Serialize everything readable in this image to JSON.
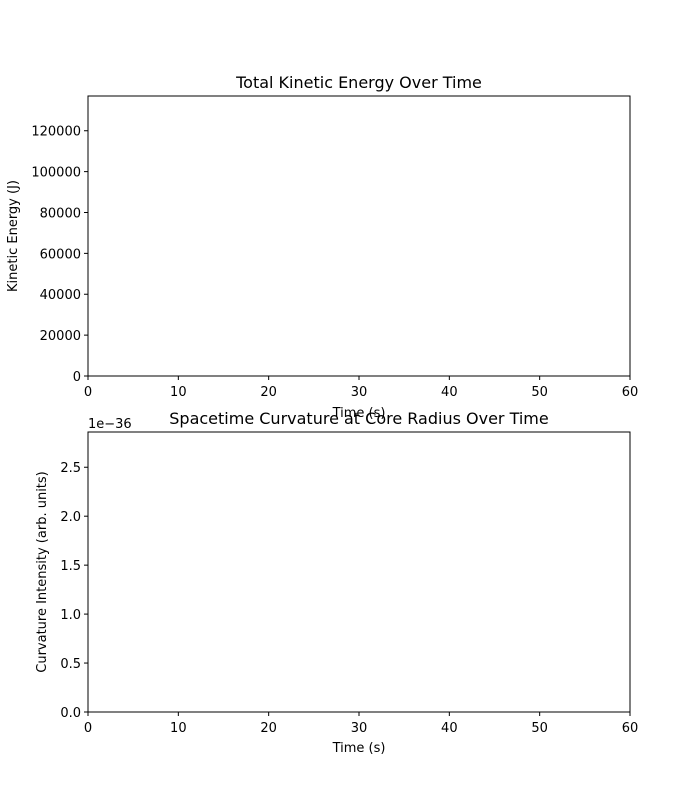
{
  "chart_data": [
    {
      "type": "line",
      "title": "Total Kinetic Energy Over Time",
      "xlabel": "Time (s)",
      "ylabel": "Kinetic Energy (J)",
      "xlim": [
        0,
        60
      ],
      "ylim": [
        0,
        137000
      ],
      "xticks": [
        0,
        10,
        20,
        30,
        40,
        50,
        60
      ],
      "xtick_labels": [
        "0",
        "10",
        "20",
        "30",
        "40",
        "50",
        "60"
      ],
      "yticks": [
        0,
        20000,
        40000,
        60000,
        80000,
        100000,
        120000
      ],
      "ytick_labels": [
        "0",
        "20000",
        "40000",
        "60000",
        "80000",
        "100000",
        "120000"
      ],
      "offset_label": "",
      "grid": false,
      "series": []
    },
    {
      "type": "line",
      "title": "Spacetime Curvature at Core Radius Over Time",
      "xlabel": "Time (s)",
      "ylabel": "Curvature Intensity (arb. units)",
      "xlim": [
        0,
        60
      ],
      "ylim": [
        0,
        2.86
      ],
      "xticks": [
        0,
        10,
        20,
        30,
        40,
        50,
        60
      ],
      "xtick_labels": [
        "0",
        "10",
        "20",
        "30",
        "40",
        "50",
        "60"
      ],
      "yticks": [
        0,
        0.5,
        1.0,
        1.5,
        2.0,
        2.5
      ],
      "ytick_labels": [
        "0.0",
        "0.5",
        "1.0",
        "1.5",
        "2.0",
        "2.5"
      ],
      "offset_label": "1e−36",
      "grid": false,
      "series": []
    }
  ]
}
